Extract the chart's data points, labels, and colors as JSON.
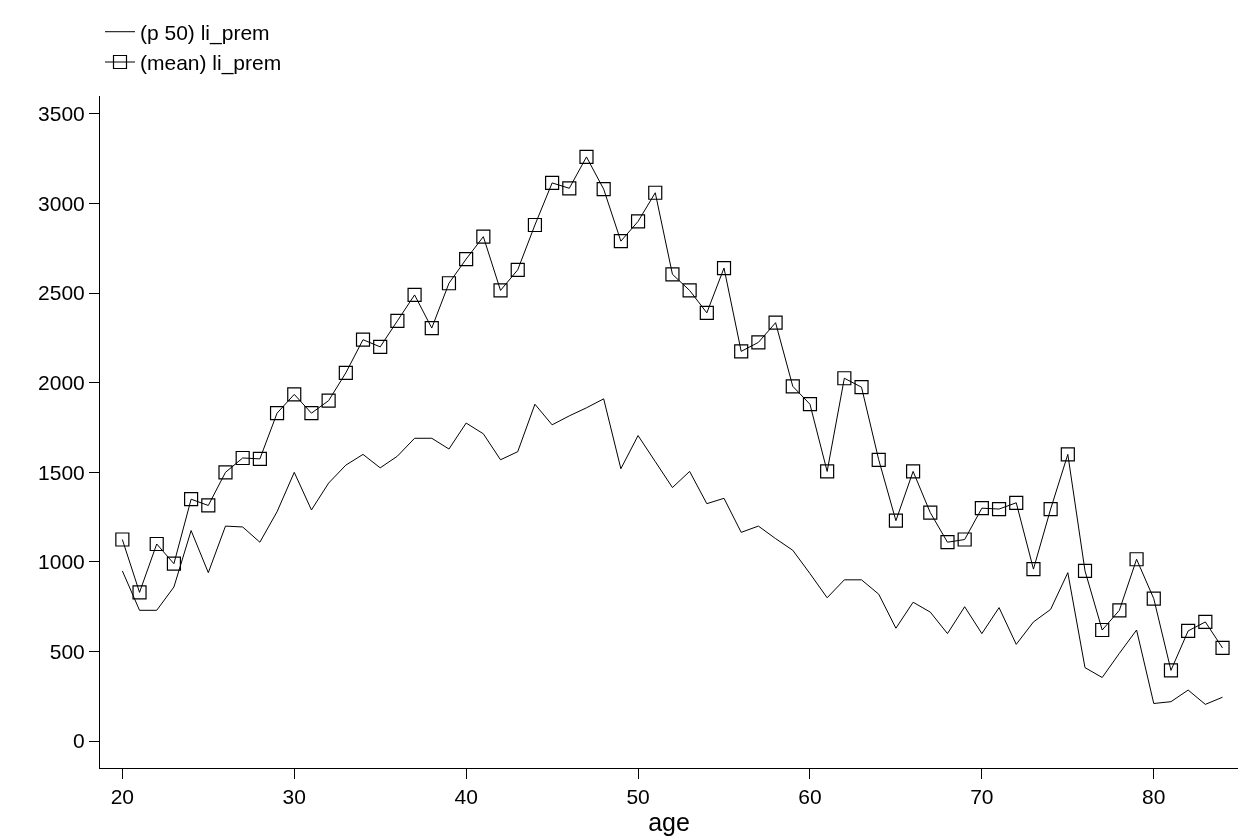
{
  "chart_data": {
    "type": "line",
    "xlabel": "age",
    "legend": "top",
    "grid": false,
    "x": [
      20,
      21,
      22,
      23,
      24,
      25,
      26,
      27,
      28,
      29,
      30,
      31,
      32,
      33,
      34,
      35,
      36,
      37,
      38,
      39,
      40,
      41,
      42,
      43,
      44,
      45,
      46,
      47,
      48,
      49,
      50,
      51,
      52,
      53,
      54,
      55,
      56,
      57,
      58,
      59,
      60,
      61,
      62,
      63,
      64,
      65,
      66,
      67,
      68,
      69,
      70,
      71,
      72,
      73,
      74,
      75,
      76,
      77,
      78,
      79,
      80,
      81,
      82,
      83,
      84
    ],
    "xlim": [
      18.7,
      84.9
    ],
    "xticks": [
      20,
      30,
      40,
      50,
      60,
      70,
      80
    ],
    "ylim": [
      -150,
      3600
    ],
    "yticks": [
      0,
      500,
      1000,
      1500,
      2000,
      2500,
      3000,
      3500
    ],
    "series": [
      {
        "name": "(p 50) li_prem",
        "color": "#000000",
        "marker": "none",
        "values": [
          950,
          730,
          730,
          860,
          1175,
          940,
          1200,
          1195,
          1110,
          1280,
          1500,
          1290,
          1440,
          1540,
          1600,
          1525,
          1590,
          1690,
          1690,
          1630,
          1775,
          1715,
          1570,
          1615,
          1880,
          1765,
          1815,
          1860,
          1910,
          1520,
          1705,
          1560,
          1415,
          1505,
          1325,
          1355,
          1165,
          1200,
          1130,
          1065,
          935,
          800,
          900,
          900,
          820,
          630,
          775,
          720,
          600,
          750,
          600,
          745,
          540,
          665,
          735,
          940,
          410,
          355,
          490,
          620,
          210,
          220,
          285,
          205,
          245
        ]
      },
      {
        "name": "(mean) li_prem",
        "color": "#000000",
        "marker": "square",
        "values": [
          1125,
          830,
          1100,
          990,
          1350,
          1315,
          1500,
          1580,
          1575,
          1830,
          1935,
          1830,
          1900,
          2055,
          2240,
          2200,
          2345,
          2490,
          2305,
          2555,
          2690,
          2815,
          2515,
          2630,
          2880,
          3115,
          3085,
          3260,
          3080,
          2790,
          2900,
          3060,
          2605,
          2515,
          2390,
          2640,
          2175,
          2225,
          2335,
          1980,
          1880,
          1505,
          2025,
          1975,
          1570,
          1230,
          1505,
          1275,
          1110,
          1125,
          1300,
          1295,
          1330,
          960,
          1295,
          1600,
          950,
          620,
          730,
          1015,
          795,
          395,
          615,
          665,
          520
        ]
      }
    ]
  }
}
